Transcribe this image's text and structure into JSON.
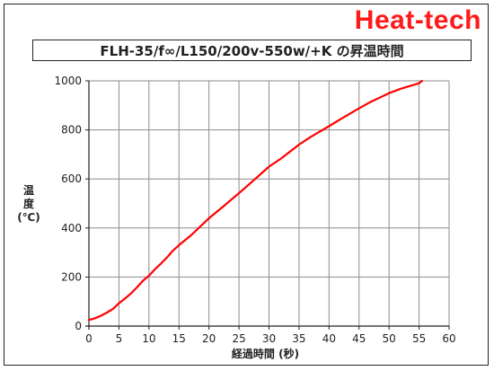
{
  "brand": "Heat-tech",
  "chart_data": {
    "type": "line",
    "title": "FLH-35/f∞/L150/200v-550w/+K の昇温時間",
    "xlabel": "経過時間 (秒)",
    "ylabel_lines": [
      "温",
      "度",
      "(℃)"
    ],
    "xlim": [
      0,
      60
    ],
    "ylim": [
      0,
      1000
    ],
    "xticks": [
      0,
      5,
      10,
      15,
      20,
      25,
      30,
      35,
      40,
      45,
      50,
      55,
      60
    ],
    "yticks": [
      0,
      200,
      400,
      600,
      800,
      1000
    ],
    "grid": true,
    "series": [
      {
        "color": "#ff0000",
        "x": [
          0,
          1,
          2,
          3,
          4,
          5,
          6,
          7,
          8,
          9,
          10,
          11,
          12,
          13,
          14,
          15,
          17,
          20,
          22,
          25,
          27,
          30,
          32,
          35,
          37,
          40,
          42,
          45,
          47,
          50,
          52,
          55,
          55.5
        ],
        "y": [
          25,
          32,
          42,
          55,
          70,
          93,
          112,
          133,
          158,
          185,
          205,
          232,
          255,
          280,
          308,
          330,
          370,
          440,
          480,
          542,
          585,
          650,
          683,
          740,
          772,
          815,
          845,
          888,
          915,
          950,
          968,
          990,
          1000
        ]
      }
    ]
  }
}
